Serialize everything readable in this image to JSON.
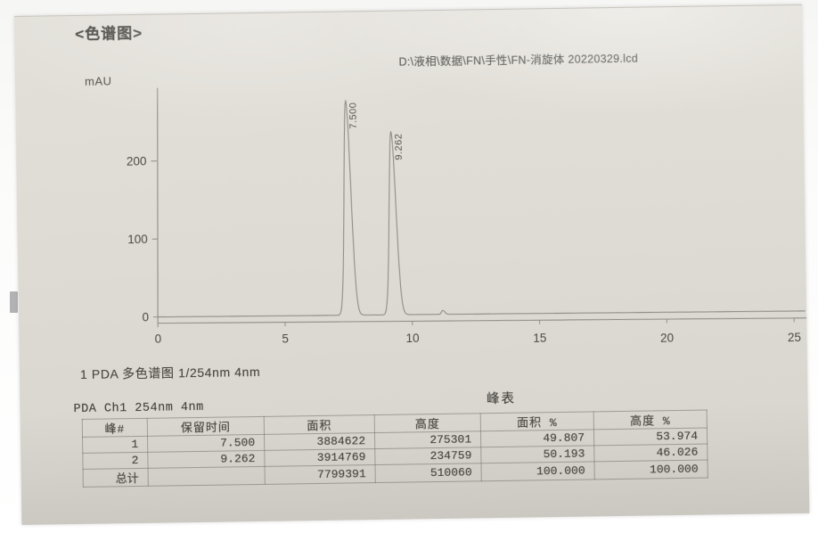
{
  "page": {
    "title": "<色谱图>",
    "channel_line": "1 PDA 多色谱图 1/254nm 4nm"
  },
  "chart": {
    "y_unit": "mAU",
    "file_path": "D:\\液相\\数据\\FN\\手性\\FN-消旋体 20220329.lcd"
  },
  "chart_data": {
    "type": "line",
    "title": "",
    "xlabel": "",
    "ylabel": "mAU",
    "xlim": [
      0,
      25.6
    ],
    "ylim": [
      0,
      300
    ],
    "grid": false,
    "x_ticks": [
      0,
      5,
      10,
      15,
      20,
      25
    ],
    "y_ticks": [
      0,
      100,
      200
    ],
    "annotation": "D:\\液相\\数据\\FN\\手性\\FN-消旋体 20220329.lcd",
    "peaks": [
      {
        "rt": 7.5,
        "height_mau": 275.3,
        "label": "7.500"
      },
      {
        "rt": 9.262,
        "height_mau": 234.8,
        "label": "9.262"
      }
    ],
    "minor_blips": [
      {
        "rt": 11.2,
        "height_mau": 5
      }
    ]
  },
  "peak_table": {
    "title": "峰表",
    "channel": "PDA Ch1 254nm 4nm",
    "headers": [
      "峰#",
      "保留时间",
      "面积",
      "高度",
      "面积 %",
      "高度 %"
    ],
    "rows": [
      [
        "1",
        "7.500",
        "3884622",
        "275301",
        "49.807",
        "53.974"
      ],
      [
        "2",
        "9.262",
        "3914769",
        "234759",
        "50.193",
        "46.026"
      ],
      [
        "总计",
        "",
        "7799391",
        "510060",
        "100.000",
        "100.000"
      ]
    ]
  },
  "colors": {
    "paper": "#dedbd4",
    "ink": "#45443f",
    "trace": "#90908a",
    "edge_tab": "#b2b2b4"
  }
}
